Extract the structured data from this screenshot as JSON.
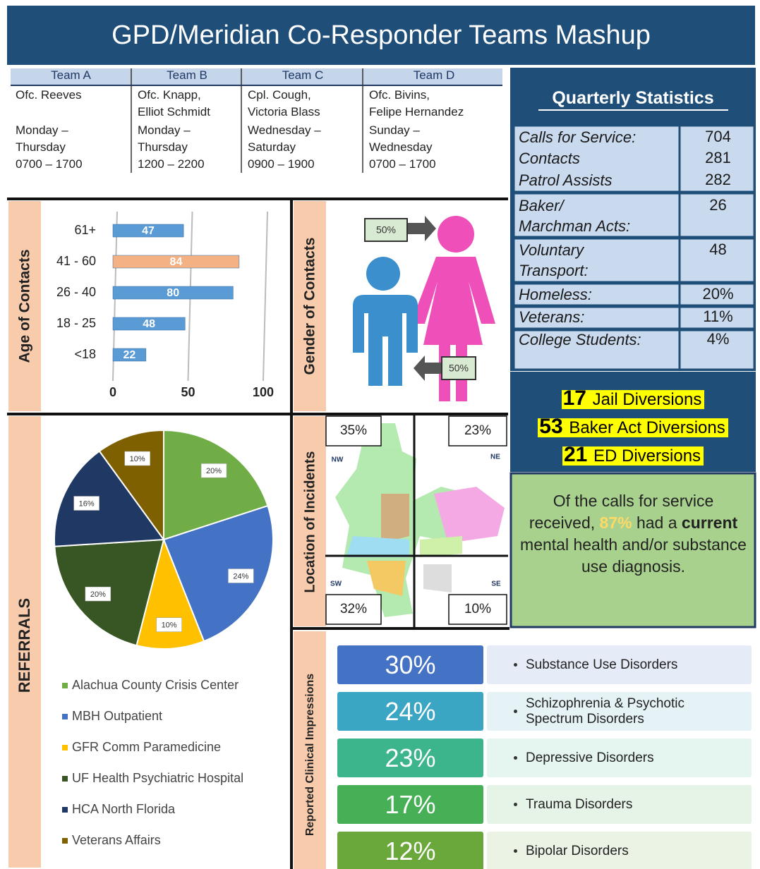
{
  "title": "GPD/Meridian Co-Responder Teams Mashup",
  "teams": [
    {
      "name": "Team A",
      "members": [
        "Ofc. Reeves"
      ],
      "days": [
        "Monday –",
        "Thursday"
      ],
      "hours": "0700 – 1700"
    },
    {
      "name": "Team B",
      "members": [
        "Ofc. Knapp,",
        "Elliot Schmidt"
      ],
      "days": [
        "Monday –",
        "Thursday"
      ],
      "hours": "1200 – 2200"
    },
    {
      "name": "Team C",
      "members": [
        "Cpl. Cough,",
        "Victoria Blass"
      ],
      "days": [
        "Wednesday –",
        "Saturday"
      ],
      "hours": "0900 – 1900"
    },
    {
      "name": "Team D",
      "members": [
        "Ofc. Bivins,",
        "Felipe Hernandez"
      ],
      "days": [
        "Sunday –",
        "Wednesday"
      ],
      "hours": "0700 – 1700"
    }
  ],
  "quarterly_statistics": {
    "title": "Quarterly Statistics",
    "rows": [
      {
        "label": [
          "Calls for Service:"
        ],
        "value": 704
      },
      {
        "label": [
          "Contacts"
        ],
        "value": 281
      },
      {
        "label": [
          "Patrol Assists"
        ],
        "value": 282
      },
      {
        "label": [
          "Baker/",
          "Marchman Acts:"
        ],
        "value": 26
      },
      {
        "label": [
          "Voluntary",
          "Transport:"
        ],
        "value": 48
      },
      {
        "label": [
          "Homeless:"
        ],
        "value": "20%"
      },
      {
        "label": [
          "Veterans:"
        ],
        "value": "11%"
      },
      {
        "label": [
          "College Students:"
        ],
        "value": "4%"
      }
    ]
  },
  "diversions": [
    {
      "value": 17,
      "label": "Jail Diversions"
    },
    {
      "value": 53,
      "label": "Baker Act Diversions"
    },
    {
      "value": 21,
      "label": "ED Diversions"
    }
  ],
  "note": {
    "before": "Of the calls for service received,",
    "percent": "87%",
    "middle": "had a",
    "bold": "current",
    "after": "mental health and/or substance use diagnosis."
  },
  "gender": {
    "title": "Gender of Contacts",
    "female": "50%",
    "male": "50%"
  },
  "location": {
    "title": "Location of Incidents",
    "regions": [
      {
        "name": "NW",
        "share": "35%"
      },
      {
        "name": "NE",
        "share": "23%"
      },
      {
        "name": "SW",
        "share": "32%"
      },
      {
        "name": "SE",
        "share": "10%"
      }
    ]
  },
  "clinical": {
    "title": "Reported Clinical Impressions",
    "items": [
      {
        "share": "30%",
        "label": "Substance Use Disorders",
        "color": "#4472c4"
      },
      {
        "share": "24%",
        "label": "Schizophrenia & Psychotic Spectrum Disorders",
        "color": "#3aa6c4"
      },
      {
        "share": "23%",
        "label": "Depressive Disorders",
        "color": "#3cb48c"
      },
      {
        "share": "17%",
        "label": "Trauma Disorders",
        "color": "#47b056"
      },
      {
        "share": "12%",
        "label": "Bipolar Disorders",
        "color": "#6aa83c"
      }
    ]
  },
  "chart_data": [
    {
      "type": "bar",
      "title": "Age of Contacts",
      "categories": [
        "61+",
        "41 - 60",
        "26 - 40",
        "18 - 25",
        "<18"
      ],
      "values": [
        47,
        84,
        80,
        48,
        22
      ],
      "colors": [
        "#5b9bd5",
        "#f4b183",
        "#5b9bd5",
        "#5b9bd5",
        "#5b9bd5"
      ],
      "xlim": [
        0,
        100
      ],
      "xticks": [
        0,
        50,
        100
      ],
      "grid": true
    },
    {
      "type": "pie",
      "title": "REFERRALS",
      "categories": [
        "Alachua County Crisis Center",
        "MBH Outpatient",
        "GFR Comm Paramedicine",
        "UF Health Psychiatric Hospital",
        "HCA North Florida",
        "Veterans Affairs"
      ],
      "values": [
        20,
        24,
        10,
        20,
        16,
        10
      ],
      "value_labels": [
        "20%",
        "24%",
        "10%",
        "20%",
        "16%",
        "10%"
      ],
      "colors": [
        "#70ad47",
        "#4472c4",
        "#ffc000",
        "#375623",
        "#203864",
        "#7f6000"
      ]
    }
  ]
}
